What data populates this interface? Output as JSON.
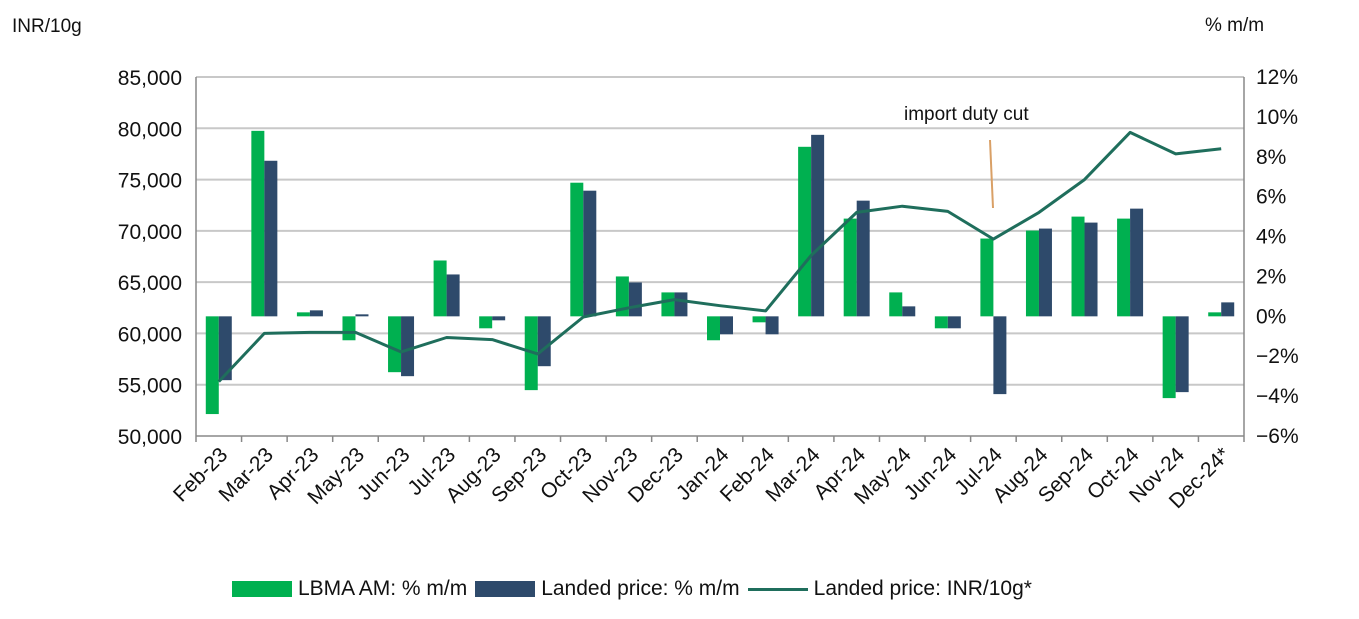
{
  "chart_data": {
    "type": "bar+line",
    "categories": [
      "Feb-23",
      "Mar-23",
      "Apr-23",
      "May-23",
      "Jun-23",
      "Jul-23",
      "Aug-23",
      "Sep-23",
      "Oct-23",
      "Nov-23",
      "Dec-23",
      "Jan-24",
      "Feb-24",
      "Mar-24",
      "Apr-24",
      "May-24",
      "Jun-24",
      "Jul-24",
      "Aug-24",
      "Sep-24",
      "Oct-24",
      "Nov-24",
      "Dec-24*"
    ],
    "series": [
      {
        "name": "LBMA AM: % m/m",
        "type": "bar",
        "axis": "right",
        "color": "#00b050",
        "values": [
          -4.9,
          9.3,
          0.2,
          -1.2,
          -2.8,
          2.8,
          -0.6,
          -3.7,
          6.7,
          2.0,
          1.2,
          -1.2,
          -0.3,
          8.5,
          4.9,
          1.2,
          -0.6,
          3.9,
          4.3,
          5.0,
          4.9,
          -4.1,
          0.2
        ]
      },
      {
        "name": "Landed price: % m/m",
        "type": "bar",
        "axis": "right",
        "color": "#2e4a6b",
        "values": [
          -3.2,
          7.8,
          0.3,
          0.1,
          -3.0,
          2.1,
          -0.2,
          -2.5,
          6.3,
          1.7,
          1.2,
          -0.9,
          -0.9,
          9.1,
          5.8,
          0.5,
          -0.6,
          -3.9,
          4.4,
          4.7,
          5.4,
          -3.8,
          0.7
        ]
      },
      {
        "name": "Landed price: INR/10g*",
        "type": "line",
        "axis": "left",
        "color": "#1f6e5c",
        "values": [
          55300,
          60000,
          60100,
          60100,
          58200,
          59600,
          59400,
          58000,
          61600,
          62500,
          63300,
          62700,
          62200,
          67600,
          71800,
          72400,
          71900,
          69200,
          71800,
          75000,
          79600,
          77500,
          78000
        ]
      }
    ],
    "left_axis": {
      "label": "INR/10g",
      "min": 50000,
      "max": 85000,
      "step": 5000,
      "tick_labels": [
        "50,000",
        "55,000",
        "60,000",
        "65,000",
        "70,000",
        "75,000",
        "80,000",
        "85,000"
      ]
    },
    "right_axis": {
      "label": "% m/m",
      "min": -6,
      "max": 12,
      "step": 2,
      "tick_labels": [
        "−6%",
        "−4%",
        "−2%",
        "0%",
        "2%",
        "4%",
        "6%",
        "8%",
        "10%",
        "12%"
      ]
    },
    "annotation": {
      "text": "import duty cut",
      "category": "Jul-24"
    },
    "grid": true,
    "legend_position": "bottom"
  }
}
